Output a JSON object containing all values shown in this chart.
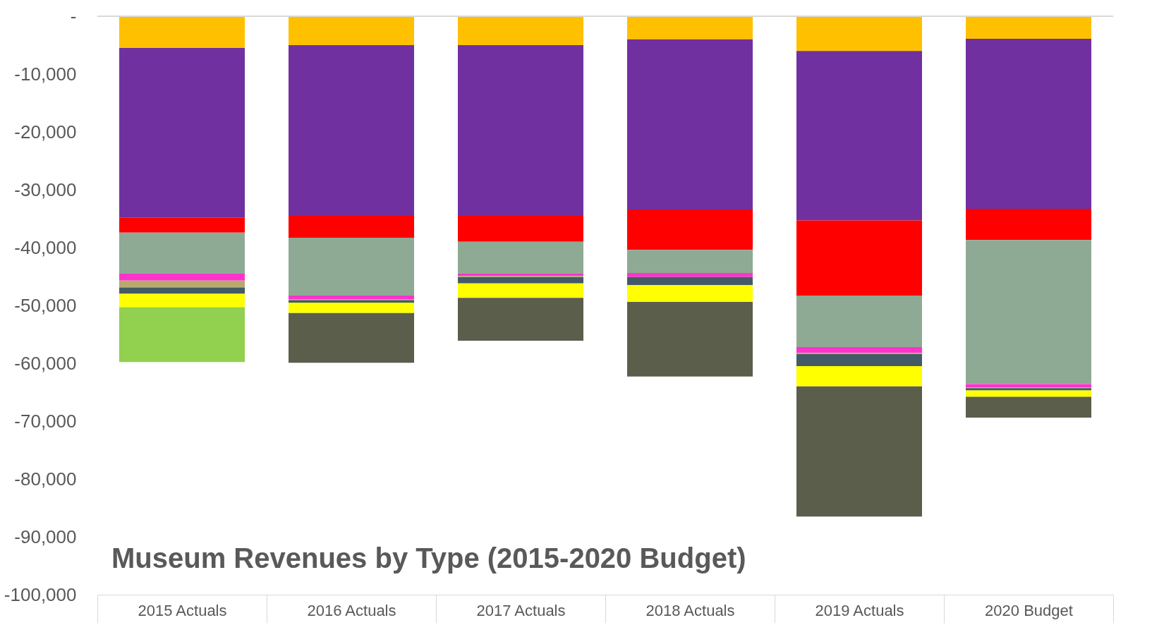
{
  "chart_data": {
    "type": "bar",
    "stacked": true,
    "title": "Museum Revenues by Type (2015-2020 Budget)",
    "categories": [
      "2015 Actuals",
      "2016 Actuals",
      "2017 Actuals",
      "2018 Actuals",
      "2019 Actuals",
      "2020 Budget"
    ],
    "series": [
      {
        "color": "#ffc000",
        "values": [
          -5500,
          -5000,
          -5000,
          -4000,
          -6000,
          -3900
        ]
      },
      {
        "color": "#7030a0",
        "values": [
          -29300,
          -29500,
          -29500,
          -29400,
          -29300,
          -29400
        ]
      },
      {
        "color": "#ff0000",
        "values": [
          -2600,
          -3800,
          -4500,
          -7000,
          -13000,
          -5400
        ]
      },
      {
        "color": "#8faa94",
        "values": [
          -7100,
          -10000,
          -5500,
          -4000,
          -8900,
          -24900
        ]
      },
      {
        "color": "#ff33cc",
        "values": [
          -1200,
          -600,
          -400,
          -700,
          -1000,
          -600
        ]
      },
      {
        "color": "#b8a970",
        "values": [
          -1200,
          -200,
          -200,
          null,
          -200,
          -100
        ]
      },
      {
        "color": "#435b66",
        "values": [
          -1100,
          -400,
          -1100,
          -1400,
          -2100,
          -400
        ]
      },
      {
        "color": "#ffff00",
        "values": [
          -2300,
          -1800,
          -2500,
          -2900,
          -3500,
          -1100
        ]
      },
      {
        "color": "#92d050",
        "values": [
          -9500,
          null,
          null,
          null,
          null,
          null
        ]
      },
      {
        "color": "#5c5e4c",
        "values": [
          null,
          -8600,
          -7400,
          -12900,
          -22500,
          -3600
        ]
      }
    ],
    "ylim": [
      -100000,
      0
    ],
    "yticks": [
      {
        "value": 0,
        "label": "-"
      },
      {
        "value": -10000,
        "label": "-10,000"
      },
      {
        "value": -20000,
        "label": "-20,000"
      },
      {
        "value": -30000,
        "label": "-30,000"
      },
      {
        "value": -40000,
        "label": "-40,000"
      },
      {
        "value": -50000,
        "label": "-50,000"
      },
      {
        "value": -60000,
        "label": "-60,000"
      },
      {
        "value": -70000,
        "label": "-70,000"
      },
      {
        "value": -80000,
        "label": "-80,000"
      },
      {
        "value": -90000,
        "label": "-90,000"
      },
      {
        "value": -100000,
        "label": "-100,000"
      }
    ],
    "grid": false
  }
}
